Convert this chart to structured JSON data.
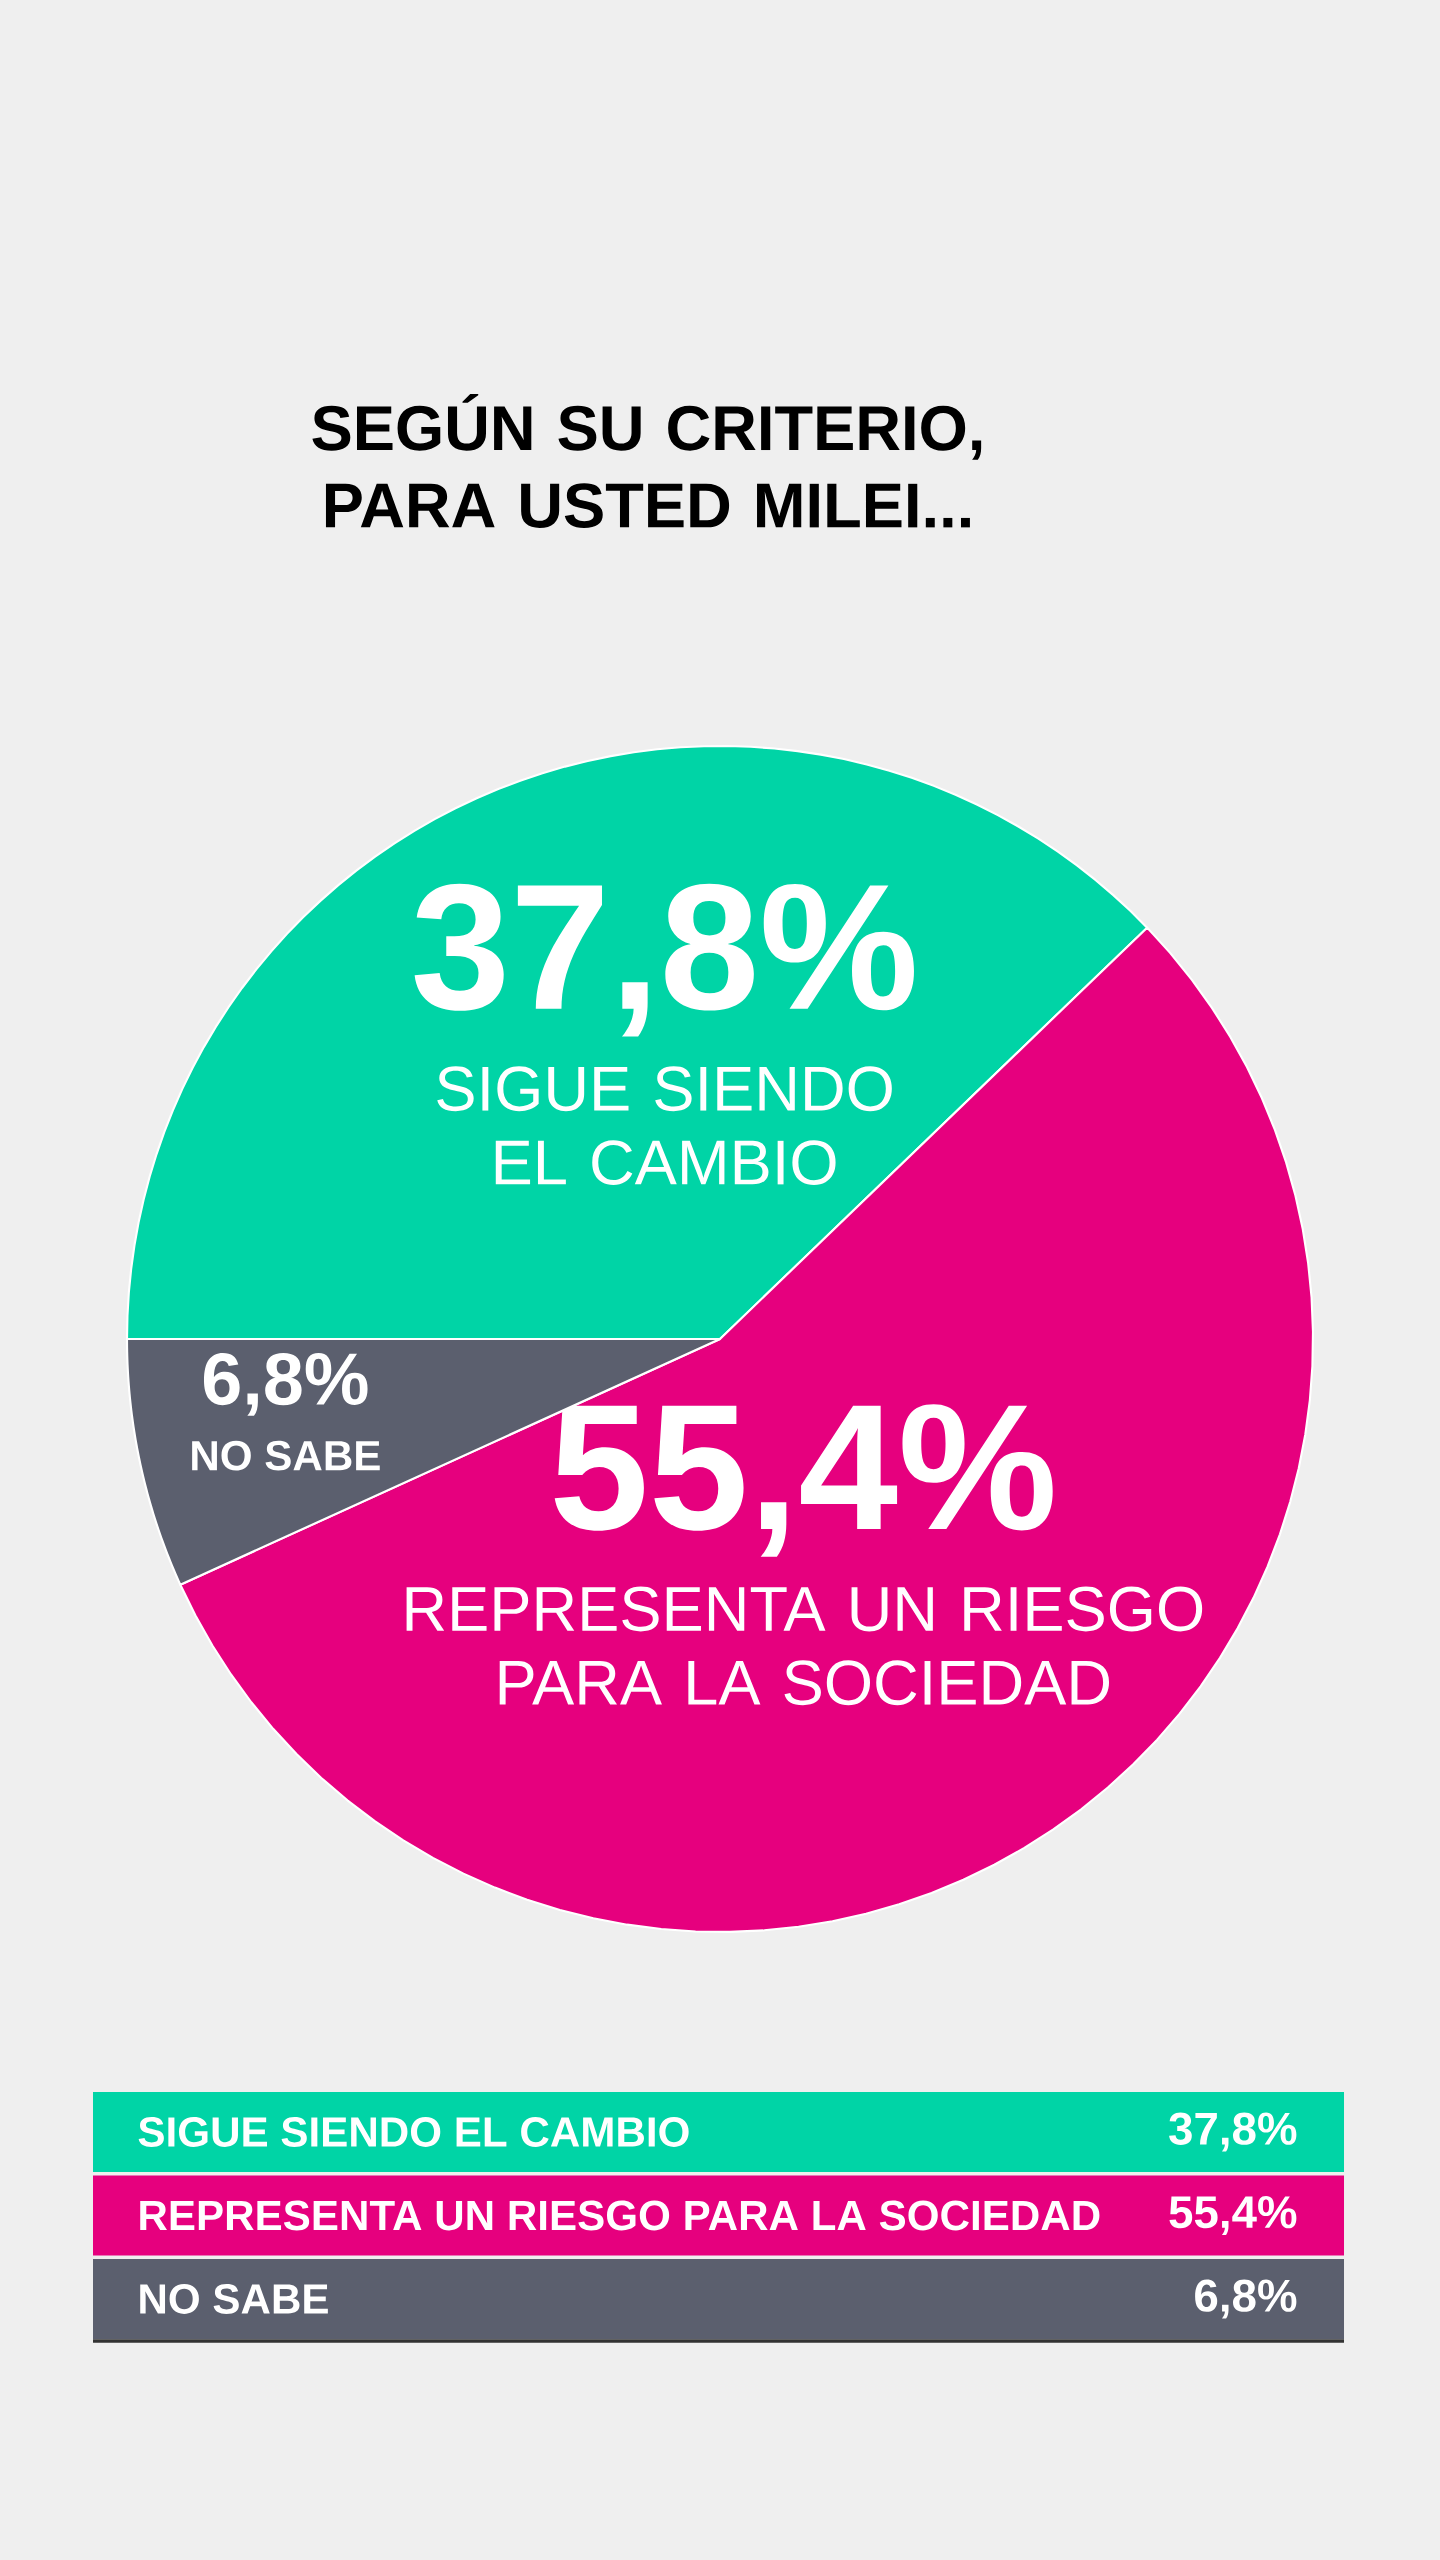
{
  "chart_data": {
    "type": "pie",
    "title": "SEGÚN SU CRITERIO, PARA USTED MILEI...",
    "categories": [
      "SIGUE SIENDO EL CAMBIO",
      "REPRESENTA UN RIESGO PARA LA SOCIEDAD",
      "NO SABE"
    ],
    "values": [
      37.8,
      55.4,
      6.8
    ],
    "colors": [
      "#00d4a6",
      "#e6007e",
      "#5b5f6e"
    ],
    "value_labels": [
      "37,8%",
      "55,4%",
      "6,8%"
    ]
  }
}
